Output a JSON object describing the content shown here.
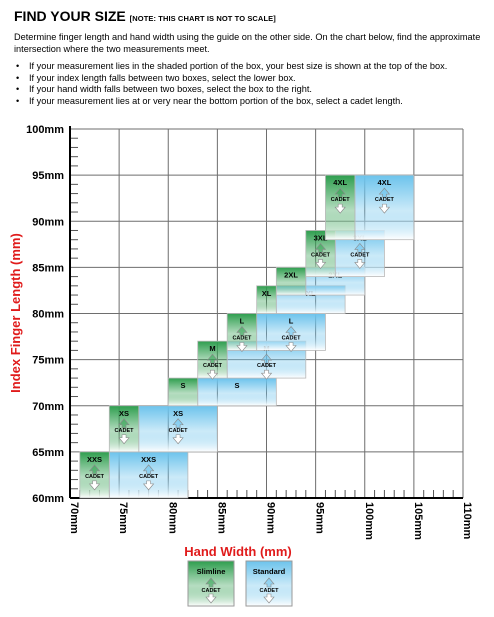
{
  "header": {
    "title": "FIND YOUR SIZE",
    "note": "[NOTE: THIS CHART IS NOT TO SCALE]",
    "intro": "Determine finger length and hand width using the guide on the other side.  On the chart below, find the approximate intersection where the two measurements meet.",
    "bullets": [
      "If your measurement lies in the shaded portion of the box, your best size is shown at the top of the box.",
      "If your index length falls between two boxes, select the lower box.",
      "If your hand width falls between two boxes, select the box to the right.",
      "If your measurement lies at or very near the bottom portion of the box, select a cadet length."
    ]
  },
  "colors": {
    "slimline_top": "#2e9e4e",
    "slimline_bottom": "#ffffff",
    "standard_top": "#6cc3ec",
    "standard_bottom": "#ffffff",
    "axis_title": "#e01b1b",
    "grid": "#6e6e6e"
  },
  "chart_data": {
    "type": "size-chart",
    "xlabel": "Hand Width (mm)",
    "ylabel": "Index Finger Length (mm)",
    "xlim": [
      70,
      110
    ],
    "ylim": [
      60,
      100
    ],
    "x_ticks": [
      "70mm",
      "75mm",
      "80mm",
      "85mm",
      "90mm",
      "95mm",
      "100mm",
      "105mm",
      "110mm"
    ],
    "y_ticks": [
      "100mm",
      "95mm",
      "90mm",
      "85mm",
      "80mm",
      "75mm",
      "70mm",
      "65mm",
      "60mm"
    ],
    "cadet_label": "CADET",
    "sizes": [
      {
        "slim": "XXS",
        "std": "XXS",
        "y": [
          60,
          65
        ],
        "slim_x": [
          71,
          74
        ],
        "std_x": [
          74,
          82
        ]
      },
      {
        "slim": "XS",
        "std": "XS",
        "y": [
          65,
          70
        ],
        "slim_x": [
          74,
          77
        ],
        "std_x": [
          77,
          85
        ]
      },
      {
        "slim": "S",
        "std": "S",
        "y": [
          70,
          73
        ],
        "slim_x": [
          80,
          83
        ],
        "std_x": [
          83,
          91
        ]
      },
      {
        "slim": "M",
        "std": "M",
        "y": [
          73,
          77
        ],
        "slim_x": [
          83,
          86
        ],
        "std_x": [
          86,
          94
        ]
      },
      {
        "slim": "L",
        "std": "L",
        "y": [
          76,
          80
        ],
        "slim_x": [
          86,
          89
        ],
        "std_x": [
          89,
          96
        ]
      },
      {
        "slim": "XL",
        "std": "XL",
        "y": [
          80,
          83
        ],
        "slim_x": [
          89,
          91
        ],
        "std_x": [
          91,
          98
        ]
      },
      {
        "slim": "2XL",
        "std": "2XL",
        "y": [
          82,
          85
        ],
        "slim_x": [
          91,
          94
        ],
        "std_x": [
          94,
          100
        ]
      },
      {
        "slim": "3XL",
        "std": "3XL",
        "y": [
          84,
          89
        ],
        "slim_x": [
          94,
          97
        ],
        "std_x": [
          97,
          102
        ]
      },
      {
        "slim": "4XL",
        "std": "4XL",
        "y": [
          88,
          95
        ],
        "slim_x": [
          96,
          99
        ],
        "std_x": [
          99,
          105
        ]
      }
    ],
    "legend": [
      {
        "label": "Slimline",
        "cadet": "CADET",
        "style": "slimline"
      },
      {
        "label": "Standard",
        "cadet": "CADET",
        "style": "standard"
      }
    ]
  }
}
